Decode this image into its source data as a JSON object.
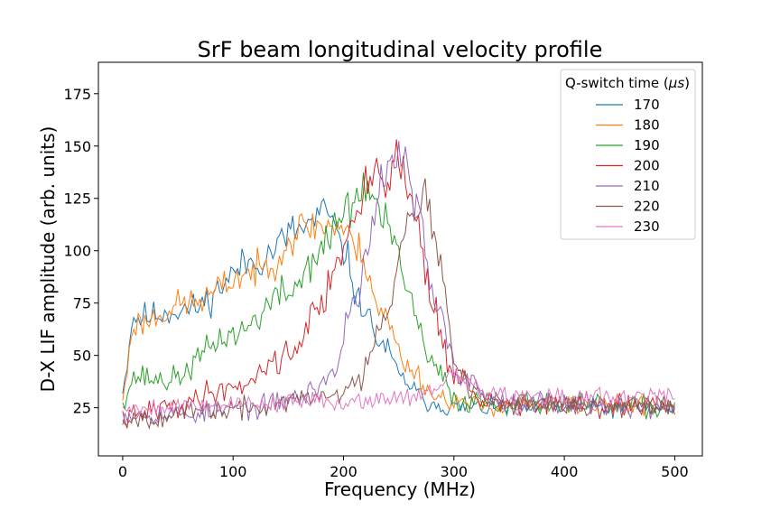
{
  "chart_data": {
    "type": "line",
    "title": "SrF beam longitudinal velocity profile",
    "xlabel": "Frequency (MHz)",
    "ylabel": "D-X LIF amplitude (arb. units)",
    "xlim": [
      -22,
      525
    ],
    "ylim": [
      2,
      190
    ],
    "x_range": [
      0,
      500
    ],
    "x_step": 2,
    "xticks": [
      0,
      100,
      200,
      300,
      400,
      500
    ],
    "yticks": [
      25,
      50,
      75,
      100,
      125,
      150,
      175
    ],
    "grid": false,
    "legend": {
      "title_prefix": "Q-switch time (",
      "title_unit": "μs",
      "title_suffix": ")",
      "placement": "top-right"
    },
    "series": [
      {
        "name": "170",
        "color": "#1f77b4",
        "knots": [
          [
            0,
            35
          ],
          [
            10,
            68
          ],
          [
            60,
            72
          ],
          [
            120,
            95
          ],
          [
            160,
            110
          ],
          [
            185,
            118
          ],
          [
            200,
            100
          ],
          [
            215,
            75
          ],
          [
            235,
            55
          ],
          [
            255,
            38
          ],
          [
            275,
            28
          ],
          [
            300,
            25
          ],
          [
            500,
            25
          ]
        ],
        "noise": 9,
        "seed": 11
      },
      {
        "name": "180",
        "color": "#ff7f0e",
        "knots": [
          [
            0,
            30
          ],
          [
            10,
            65
          ],
          [
            60,
            75
          ],
          [
            120,
            90
          ],
          [
            170,
            112
          ],
          [
            195,
            112
          ],
          [
            215,
            100
          ],
          [
            235,
            70
          ],
          [
            258,
            45
          ],
          [
            285,
            30
          ],
          [
            320,
            26
          ],
          [
            500,
            26
          ]
        ],
        "noise": 9,
        "seed": 23
      },
      {
        "name": "190",
        "color": "#2ca02c",
        "knots": [
          [
            0,
            30
          ],
          [
            12,
            40
          ],
          [
            40,
            38
          ],
          [
            100,
            60
          ],
          [
            150,
            80
          ],
          [
            180,
            100
          ],
          [
            200,
            118
          ],
          [
            220,
            130
          ],
          [
            240,
            112
          ],
          [
            258,
            80
          ],
          [
            280,
            45
          ],
          [
            305,
            28
          ],
          [
            500,
            25
          ]
        ],
        "noise": 10,
        "seed": 37
      },
      {
        "name": "200",
        "color": "#d62728",
        "knots": [
          [
            0,
            20
          ],
          [
            40,
            25
          ],
          [
            100,
            35
          ],
          [
            150,
            50
          ],
          [
            175,
            70
          ],
          [
            200,
            102
          ],
          [
            230,
            138
          ],
          [
            250,
            140
          ],
          [
            265,
            120
          ],
          [
            280,
            75
          ],
          [
            300,
            40
          ],
          [
            330,
            27
          ],
          [
            500,
            25
          ]
        ],
        "noise": 11,
        "seed": 41
      },
      {
        "name": "210",
        "color": "#9467bd",
        "knots": [
          [
            0,
            22
          ],
          [
            60,
            22
          ],
          [
            120,
            25
          ],
          [
            160,
            30
          ],
          [
            190,
            40
          ],
          [
            210,
            78
          ],
          [
            235,
            130
          ],
          [
            252,
            148
          ],
          [
            265,
            122
          ],
          [
            285,
            70
          ],
          [
            305,
            40
          ],
          [
            340,
            28
          ],
          [
            500,
            25
          ]
        ],
        "noise": 10,
        "seed": 53
      },
      {
        "name": "220",
        "color": "#8c564b",
        "knots": [
          [
            0,
            20
          ],
          [
            100,
            24
          ],
          [
            180,
            30
          ],
          [
            210,
            35
          ],
          [
            240,
            72
          ],
          [
            258,
            118
          ],
          [
            272,
            128
          ],
          [
            287,
            95
          ],
          [
            300,
            50
          ],
          [
            320,
            32
          ],
          [
            350,
            27
          ],
          [
            500,
            25
          ]
        ],
        "noise": 10,
        "seed": 67
      },
      {
        "name": "230",
        "color": "#e377c2",
        "knots": [
          [
            0,
            25
          ],
          [
            100,
            27
          ],
          [
            200,
            28
          ],
          [
            250,
            30
          ],
          [
            280,
            33
          ],
          [
            300,
            40
          ],
          [
            330,
            33
          ],
          [
            360,
            30
          ],
          [
            500,
            30
          ]
        ],
        "noise": 8,
        "seed": 79
      }
    ]
  }
}
